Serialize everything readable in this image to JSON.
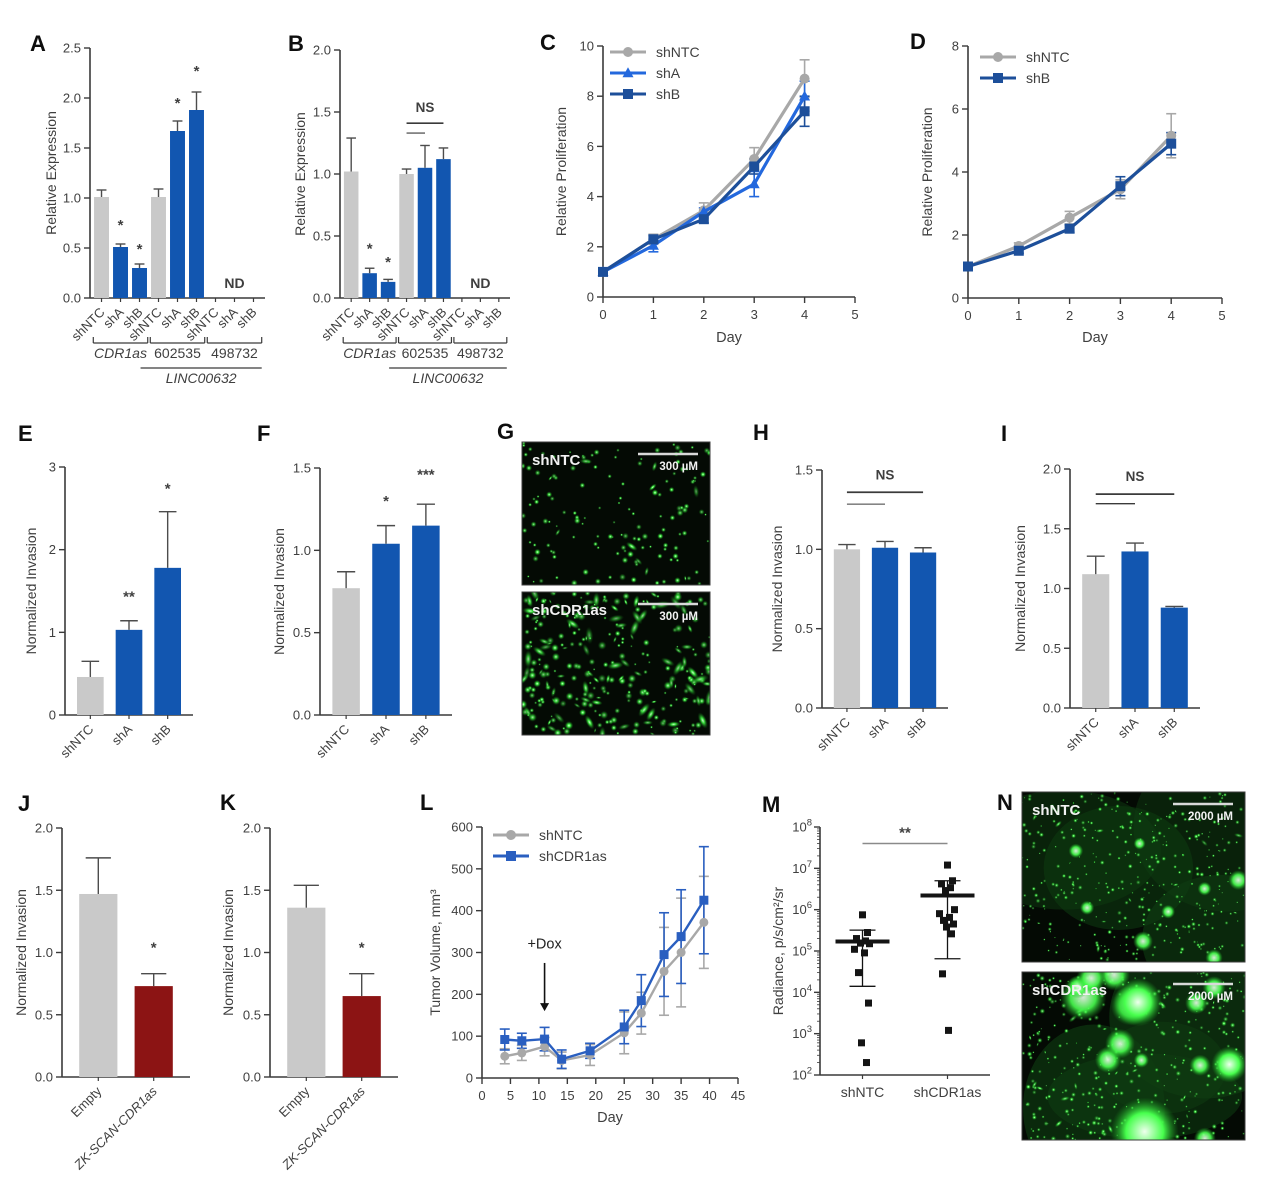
{
  "colors": {
    "gray": "#c9c9c9",
    "blue": "#1256b0",
    "darkred": "#8c1414",
    "grayline": "#a8a8a8",
    "brightblue": "#2368dd",
    "navy": "#1d4f9a",
    "royalblue": "#2a5fc0",
    "axis": "#3a3a3a",
    "err": "#4c4c4c",
    "text": "#3f3f3f",
    "black": "#141414",
    "siggray": "#8a8a8a",
    "image_bg": "#040a04",
    "dot_green": "#3df241"
  },
  "chart_data": [
    {
      "panel": "A",
      "type": "bar",
      "ylabel": "Relative Expression",
      "ylim": [
        0,
        2.5
      ],
      "yticks": [
        "0.0",
        "0.5",
        "1.0",
        "1.5",
        "2.0",
        "2.5"
      ],
      "categories": [
        "shNTC",
        "shA",
        "shB",
        "shNTC",
        "shA",
        "shB",
        "shNTC",
        "shA",
        "shB"
      ],
      "bars": [
        {
          "value": 1.01,
          "err": 0.07,
          "color": "gray"
        },
        {
          "value": 0.51,
          "err": 0.03,
          "color": "blue",
          "sig": "*",
          "sig_y": 0.68
        },
        {
          "value": 0.3,
          "err": 0.04,
          "color": "blue",
          "sig": "*",
          "sig_y": 0.44
        },
        {
          "value": 1.01,
          "err": 0.08,
          "color": "gray"
        },
        {
          "value": 1.67,
          "err": 0.1,
          "color": "blue",
          "sig": "*",
          "sig_y": 1.9
        },
        {
          "value": 1.88,
          "err": 0.18,
          "color": "blue",
          "sig": "*",
          "sig_y": 2.22
        },
        {
          "value": 0,
          "err": 0,
          "color": "blue"
        },
        {
          "value": 0,
          "err": 0,
          "color": "blue"
        },
        {
          "value": 0,
          "err": 0,
          "color": "blue"
        }
      ],
      "nd": {
        "text": "ND",
        "slot": 7,
        "y": 0.1
      },
      "groups": [
        {
          "label": "CDR1as",
          "italic": true,
          "from": 0,
          "to": 2
        },
        {
          "label": "602535",
          "italic": false,
          "from": 3,
          "to": 5
        },
        {
          "label": "498732",
          "italic": false,
          "from": 6,
          "to": 8
        }
      ],
      "supergroup": {
        "label": "LINC00632",
        "italic": true,
        "from": 3,
        "to": 8
      }
    },
    {
      "panel": "B",
      "type": "bar",
      "ylabel": "Relative Expression",
      "ylim": [
        0,
        2.0
      ],
      "yticks": [
        "0.0",
        "0.5",
        "1.0",
        "1.5",
        "2.0"
      ],
      "categories": [
        "shNTC",
        "shA",
        "shB",
        "shNTC",
        "shA",
        "shB",
        "shNTC",
        "shA",
        "shB"
      ],
      "bars": [
        {
          "value": 1.02,
          "err": 0.27,
          "color": "gray"
        },
        {
          "value": 0.2,
          "err": 0.04,
          "color": "blue",
          "sig": "*",
          "sig_y": 0.36
        },
        {
          "value": 0.13,
          "err": 0.02,
          "color": "blue",
          "sig": "*",
          "sig_y": 0.25
        },
        {
          "value": 1.0,
          "err": 0.04,
          "color": "gray"
        },
        {
          "value": 1.05,
          "err": 0.18,
          "color": "blue"
        },
        {
          "value": 1.12,
          "err": 0.09,
          "color": "blue"
        },
        {
          "value": 0,
          "err": 0,
          "color": "blue"
        },
        {
          "value": 0,
          "err": 0,
          "color": "blue"
        },
        {
          "value": 0,
          "err": 0,
          "color": "blue"
        }
      ],
      "nd": {
        "text": "ND",
        "slot": 7,
        "y": 0.08
      },
      "ns": {
        "label": "NS",
        "text_y": 1.5,
        "lines": [
          {
            "from": 3,
            "to": 5,
            "y": 1.41,
            "w": 1.6
          },
          {
            "from": 3,
            "to": 4,
            "y": 1.33,
            "w": 1.1
          }
        ]
      },
      "groups": [
        {
          "label": "CDR1as",
          "italic": true,
          "from": 0,
          "to": 2
        },
        {
          "label": "602535",
          "italic": false,
          "from": 3,
          "to": 5
        },
        {
          "label": "498732",
          "italic": false,
          "from": 6,
          "to": 8
        }
      ],
      "supergroup": {
        "label": "LINC00632",
        "italic": true,
        "from": 3,
        "to": 8
      }
    },
    {
      "panel": "C",
      "type": "line",
      "ylabel": "Relative Proliferation",
      "xlabel": "Day",
      "xlim": [
        0,
        5
      ],
      "ylim": [
        0,
        10
      ],
      "yticks": [
        0,
        2,
        4,
        6,
        8,
        10
      ],
      "xticks": [
        0,
        1,
        2,
        3,
        4,
        5
      ],
      "x": [
        0,
        1,
        2,
        3,
        4
      ],
      "series": [
        {
          "name": "shNTC",
          "marker": "circle",
          "color": "grayline",
          "values": [
            1.0,
            2.3,
            3.45,
            5.5,
            8.7
          ],
          "err": [
            0.15,
            0.2,
            0.3,
            0.45,
            0.75
          ]
        },
        {
          "name": "shA",
          "marker": "triangle",
          "color": "brightblue",
          "values": [
            1.0,
            2.05,
            3.4,
            4.5,
            8.0
          ],
          "err": [
            0.1,
            0.25,
            0.15,
            0.5,
            0.6
          ]
        },
        {
          "name": "shB",
          "marker": "square",
          "color": "navy",
          "values": [
            1.0,
            2.3,
            3.1,
            5.2,
            7.4
          ],
          "err": [
            0.1,
            0.15,
            0.15,
            0.3,
            0.6
          ]
        }
      ],
      "legend": [
        "shNTC",
        "shA",
        "shB"
      ]
    },
    {
      "panel": "D",
      "type": "line",
      "ylabel": "Relative Proliferation",
      "xlabel": "Day",
      "xlim": [
        0,
        5
      ],
      "ylim": [
        0,
        8
      ],
      "yticks": [
        0,
        2,
        4,
        6,
        8
      ],
      "xticks": [
        0,
        1,
        2,
        3,
        4,
        5
      ],
      "x": [
        0,
        1,
        2,
        3,
        4
      ],
      "series": [
        {
          "name": "shNTC",
          "marker": "circle",
          "color": "grayline",
          "values": [
            1.0,
            1.65,
            2.55,
            3.45,
            5.15
          ],
          "err": [
            0.08,
            0.1,
            0.2,
            0.3,
            0.7
          ]
        },
        {
          "name": "shB",
          "marker": "square",
          "color": "navy",
          "values": [
            1.0,
            1.5,
            2.2,
            3.55,
            4.9
          ],
          "err": [
            0.05,
            0.08,
            0.12,
            0.3,
            0.35
          ]
        }
      ],
      "legend": [
        "shNTC",
        "shB"
      ]
    },
    {
      "panel": "E",
      "type": "bar",
      "ylabel": "Normalized Invasion",
      "ylim": [
        0,
        3
      ],
      "yticks": [
        "0",
        "1",
        "2",
        "3"
      ],
      "categories": [
        "shNTC",
        "shA",
        "shB"
      ],
      "bars": [
        {
          "value": 0.46,
          "err": 0.19,
          "color": "gray"
        },
        {
          "value": 1.03,
          "err": 0.11,
          "color": "blue",
          "sig": "**",
          "sig_y": 1.37
        },
        {
          "value": 1.78,
          "err": 0.68,
          "color": "blue",
          "sig": "*",
          "sig_y": 2.68
        }
      ]
    },
    {
      "panel": "F",
      "type": "bar",
      "ylabel": "Normalized Invasion",
      "ylim": [
        0,
        1.5
      ],
      "yticks": [
        "0.0",
        "0.5",
        "1.0",
        "1.5"
      ],
      "categories": [
        "shNTC",
        "shA",
        "shB"
      ],
      "bars": [
        {
          "value": 0.77,
          "err": 0.1,
          "color": "gray"
        },
        {
          "value": 1.04,
          "err": 0.11,
          "color": "blue",
          "sig": "*",
          "sig_y": 1.27
        },
        {
          "value": 1.15,
          "err": 0.13,
          "color": "blue",
          "sig": "***",
          "sig_y": 1.43
        }
      ]
    },
    {
      "panel": "G",
      "type": "images",
      "images": [
        {
          "label": "shNTC",
          "scale_label": "300 µM",
          "style": "cells-sparse"
        },
        {
          "label": "shCDR1as",
          "scale_label": "300 µM",
          "style": "cells-dense"
        }
      ]
    },
    {
      "panel": "H",
      "type": "bar",
      "ylabel": "Normalized Invasion",
      "ylim": [
        0,
        1.5
      ],
      "yticks": [
        "0.0",
        "0.5",
        "1.0",
        "1.5"
      ],
      "categories": [
        "shNTC",
        "shA",
        "shB"
      ],
      "bars": [
        {
          "value": 1.0,
          "err": 0.03,
          "color": "gray"
        },
        {
          "value": 1.01,
          "err": 0.04,
          "color": "blue"
        },
        {
          "value": 0.98,
          "err": 0.03,
          "color": "blue"
        }
      ],
      "ns": {
        "label": "NS",
        "text_y": 1.44,
        "lines": [
          {
            "from": 0,
            "to": 2,
            "y": 1.36,
            "w": 1.8
          },
          {
            "from": 0,
            "to": 1,
            "y": 1.285,
            "w": 1.0
          }
        ]
      }
    },
    {
      "panel": "I",
      "type": "bar",
      "ylabel": "Normalized Invasion",
      "ylim": [
        0,
        2.0
      ],
      "yticks": [
        "0.0",
        "0.5",
        "1.0",
        "1.5",
        "2.0"
      ],
      "categories": [
        "shNTC",
        "shA",
        "shB"
      ],
      "bars": [
        {
          "value": 1.12,
          "err": 0.15,
          "color": "gray"
        },
        {
          "value": 1.31,
          "err": 0.07,
          "color": "blue"
        },
        {
          "value": 0.84,
          "err": 0.01,
          "color": "blue"
        }
      ],
      "ns": {
        "label": "NS",
        "text_y": 1.9,
        "lines": [
          {
            "from": 0,
            "to": 2,
            "y": 1.79,
            "w": 1.8
          },
          {
            "from": 0,
            "to": 1,
            "y": 1.71,
            "w": 1.4
          }
        ]
      }
    },
    {
      "panel": "J",
      "type": "bar",
      "ylabel": "Normalized Invasion",
      "ylim": [
        0,
        2.0
      ],
      "yticks": [
        "0.0",
        "0.5",
        "1.0",
        "1.5",
        "2.0"
      ],
      "categories": [
        "Empty",
        "ZK-SCAN-CDR1as"
      ],
      "cat_italic": [
        false,
        true
      ],
      "bars": [
        {
          "value": 1.47,
          "err": 0.29,
          "color": "gray"
        },
        {
          "value": 0.73,
          "err": 0.1,
          "color": "darkred",
          "sig": "*",
          "sig_y": 1.0
        }
      ]
    },
    {
      "panel": "K",
      "type": "bar",
      "ylabel": "Normalized Invasion",
      "ylim": [
        0,
        2.0
      ],
      "yticks": [
        "0.0",
        "0.5",
        "1.0",
        "1.5",
        "2.0"
      ],
      "categories": [
        "Empty",
        "ZK-SCAN-CDR1as"
      ],
      "cat_italic": [
        false,
        true
      ],
      "bars": [
        {
          "value": 1.36,
          "err": 0.18,
          "color": "gray"
        },
        {
          "value": 0.65,
          "err": 0.18,
          "color": "darkred",
          "sig": "*",
          "sig_y": 1.0
        }
      ]
    },
    {
      "panel": "L",
      "type": "line",
      "ylabel": "Tumor Volume, mm³",
      "xlabel": "Day",
      "xlim": [
        0,
        45
      ],
      "ylim": [
        0,
        600
      ],
      "yticks": [
        0,
        100,
        200,
        300,
        400,
        500,
        600
      ],
      "xticks": [
        0,
        5,
        10,
        15,
        20,
        25,
        30,
        35,
        40,
        45
      ],
      "x": [
        4,
        7,
        11,
        14,
        19,
        25,
        28,
        32,
        35,
        39
      ],
      "series": [
        {
          "name": "shNTC",
          "marker": "circle",
          "color": "grayline",
          "values": [
            52,
            60,
            75,
            42,
            55,
            108,
            155,
            255,
            300,
            372
          ],
          "err": [
            18,
            18,
            22,
            20,
            25,
            50,
            50,
            105,
            130,
            110
          ]
        },
        {
          "name": "shCDR1as",
          "marker": "square",
          "color": "royalblue",
          "values": [
            92,
            89,
            93,
            45,
            65,
            122,
            185,
            295,
            338,
            425
          ],
          "err": [
            25,
            18,
            28,
            22,
            18,
            40,
            62,
            100,
            112,
            128
          ]
        }
      ],
      "legend": [
        "shNTC",
        "shCDR1as"
      ],
      "annotation": {
        "text": "+Dox",
        "x": 11,
        "text_y": 310,
        "arrow_from": 275,
        "arrow_to": 160
      }
    },
    {
      "panel": "M",
      "type": "scatter_log",
      "ylabel": "Radiance, p/s/cm²/sr",
      "ylim_exp": [
        2,
        8
      ],
      "categories": [
        "shNTC",
        "shCDR1as"
      ],
      "groups": [
        {
          "name": "shNTC",
          "mean": 170000,
          "whisker_low": 14000,
          "whisker_high": 320000,
          "points": [
            750000,
            280000,
            200000,
            175000,
            155000,
            150000,
            110000,
            90000,
            30000,
            5500,
            600,
            200
          ]
        },
        {
          "name": "shCDR1as",
          "mean": 2200000,
          "whisker_low": 65000,
          "whisker_high": 5000000,
          "points": [
            12000000,
            5000000,
            4200000,
            3400000,
            2900000,
            1000000,
            800000,
            650000,
            550000,
            450000,
            380000,
            260000,
            28000,
            1200
          ]
        }
      ],
      "sig": {
        "label": "**",
        "y": 40000000
      }
    },
    {
      "panel": "N",
      "type": "images",
      "images": [
        {
          "label": "shNTC",
          "scale_label": "2000 µM",
          "style": "tumor-dim"
        },
        {
          "label": "shCDR1as",
          "scale_label": "2000 µM",
          "style": "tumor-bright"
        }
      ]
    }
  ]
}
